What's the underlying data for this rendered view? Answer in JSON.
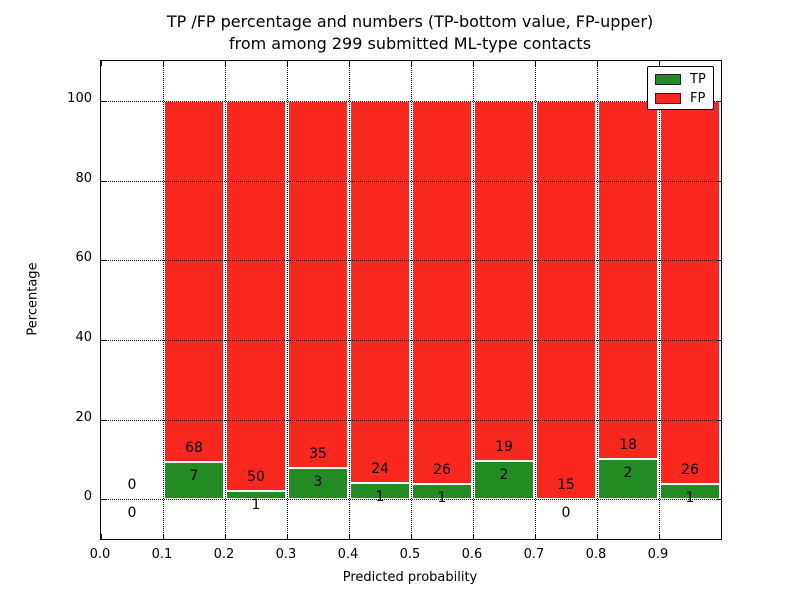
{
  "figure": {
    "title_line1": "TP /FP percentage and numbers (TP-bottom value, FP-upper)",
    "title_line2": "from among 299 submitted ML-type contacts"
  },
  "chart_data": {
    "type": "bar",
    "stacked": true,
    "title": "TP /FP percentage and numbers (TP-bottom value, FP-upper)\nfrom among 299 submitted ML-type contacts",
    "xlabel": "Predicted probability",
    "ylabel": "Percentage",
    "xlim": [
      0.0,
      1.0
    ],
    "ylim": [
      -10,
      110
    ],
    "grid": "dotted, drawn above bars",
    "bar_unit": "percentage of bin total (TP+FP stacked to 100%)",
    "total_contacts": 299,
    "colors": {
      "tp": "#228b22",
      "fp": "#f8281e",
      "bar_edge": "#ffffff",
      "text": "#000000"
    },
    "legend": {
      "position": "upper right",
      "entries": [
        {
          "label": "TP",
          "color": "#228b22"
        },
        {
          "label": "FP",
          "color": "#f8281e"
        }
      ]
    },
    "x_tick_values": [
      0.0,
      0.1,
      0.2,
      0.3,
      0.4,
      0.5,
      0.6,
      0.7,
      0.8,
      0.9
    ],
    "x_tick_labels": [
      "0.0",
      "0.1",
      "0.2",
      "0.3",
      "0.4",
      "0.5",
      "0.6",
      "0.7",
      "0.8",
      "0.9"
    ],
    "y_tick_values": [
      0,
      20,
      40,
      60,
      80,
      100
    ],
    "y_tick_labels": [
      "0",
      "20",
      "40",
      "60",
      "80",
      "100"
    ],
    "bins": [
      {
        "x0": 0.0,
        "x1": 0.1,
        "tp": 0,
        "fp": 0
      },
      {
        "x0": 0.1,
        "x1": 0.2,
        "tp": 7,
        "fp": 68
      },
      {
        "x0": 0.2,
        "x1": 0.3,
        "tp": 1,
        "fp": 50
      },
      {
        "x0": 0.3,
        "x1": 0.4,
        "tp": 3,
        "fp": 35
      },
      {
        "x0": 0.4,
        "x1": 0.5,
        "tp": 1,
        "fp": 24
      },
      {
        "x0": 0.5,
        "x1": 0.6,
        "tp": 1,
        "fp": 26
      },
      {
        "x0": 0.6,
        "x1": 0.7,
        "tp": 2,
        "fp": 19
      },
      {
        "x0": 0.7,
        "x1": 0.8,
        "tp": 0,
        "fp": 15
      },
      {
        "x0": 0.8,
        "x1": 0.9,
        "tp": 2,
        "fp": 18
      },
      {
        "x0": 0.9,
        "x1": 1.0,
        "tp": 1,
        "fp": 26
      }
    ]
  }
}
